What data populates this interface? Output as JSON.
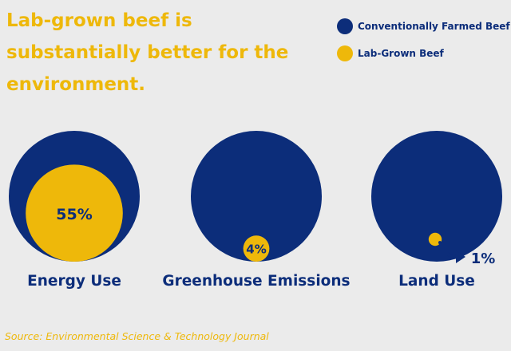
{
  "title": "Lab-grown beef is substantially better for the environment.",
  "legend": [
    {
      "label": "Conventionally Farmed Beef",
      "color": "#0c2d7a"
    },
    {
      "label": "Lab-Grown Beef",
      "color": "#eeb80a"
    }
  ],
  "source": "Source: Environmental Science & Technology Journal",
  "chart_data": {
    "type": "proportional-area-circles",
    "title": "Lab-grown beef is substantially better for the environment.",
    "series": [
      {
        "name": "Conventionally Farmed Beef",
        "color": "#0c2d7a"
      },
      {
        "name": "Lab-Grown Beef",
        "color": "#eeb80a"
      }
    ],
    "categories": [
      "Energy Use",
      "Greenhouse Emissions",
      "Land Use"
    ],
    "values": [
      55,
      4,
      1
    ],
    "value_labels": [
      "55%",
      "4%",
      "1%"
    ],
    "unit": "% of conventionally farmed beef"
  }
}
